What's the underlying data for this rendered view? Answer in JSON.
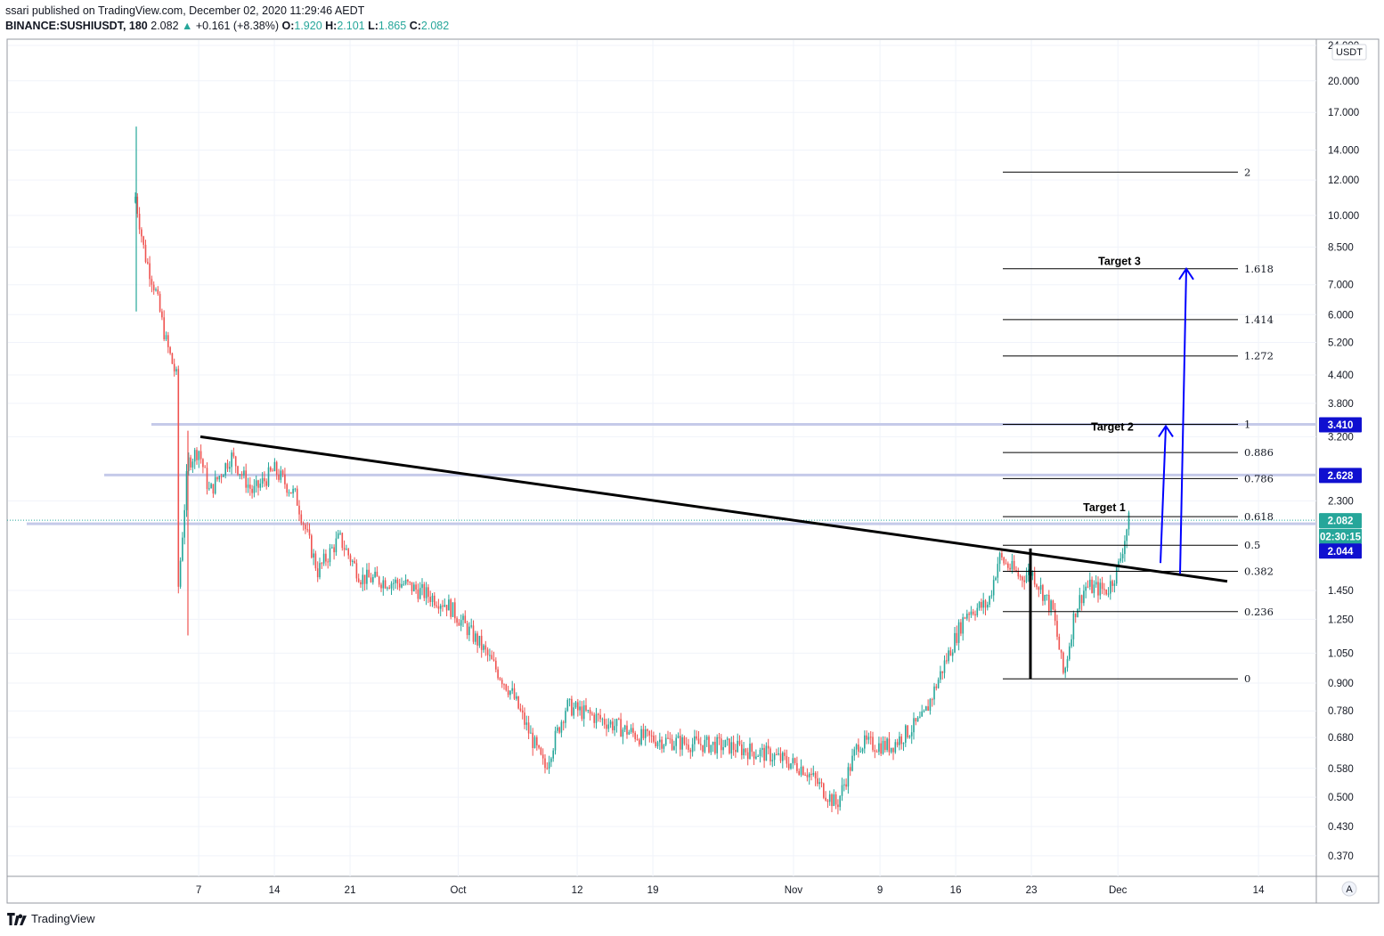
{
  "header": {
    "publisher_line": "ssari published on TradingView.com, December 02, 2020 11:29:46 AEDT",
    "symbol": "BINANCE:SUSHIUSDT, 180",
    "last": "2.082",
    "arrow": "▲",
    "change": "+0.161 (+8.38%)",
    "o_label": "O:",
    "o_value": "1.920",
    "h_label": "H:",
    "h_value": "2.101",
    "l_label": "L:",
    "l_value": "1.865",
    "c_label": "C:",
    "c_value": "2.082"
  },
  "brand": "TradingView",
  "chart_data": {
    "type": "candlestick",
    "symbol": "BINANCE:SUSHIUSDT",
    "interval": "180",
    "y_scale": "log",
    "currency_label": "USDT",
    "x_ticks": [
      "7",
      "14",
      "21",
      "Oct",
      "12",
      "19",
      "Nov",
      "9",
      "16",
      "23",
      "Dec",
      "14"
    ],
    "y_ticks": [
      "24.000",
      "20.000",
      "17.000",
      "14.000",
      "12.000",
      "10.000",
      "8.500",
      "7.000",
      "6.000",
      "5.200",
      "4.400",
      "3.800",
      "3.200",
      "2.300",
      "1.450",
      "1.250",
      "1.050",
      "0.900",
      "0.780",
      "0.680",
      "0.580",
      "0.500",
      "0.430",
      "0.370"
    ],
    "price_path": [
      {
        "date": "2020-09-01",
        "price": 6.1
      },
      {
        "date": "2020-09-01",
        "price": 15.8
      },
      {
        "date": "2020-09-01",
        "price": 11.6
      },
      {
        "date": "2020-09-02",
        "price": 8.2
      },
      {
        "date": "2020-09-03",
        "price": 6.8
      },
      {
        "date": "2020-09-04",
        "price": 5.2
      },
      {
        "date": "2020-09-05",
        "price": 4.3
      },
      {
        "date": "2020-09-05",
        "price": 1.35
      },
      {
        "date": "2020-09-06",
        "price": 2.8
      },
      {
        "date": "2020-09-07",
        "price": 3.0
      },
      {
        "date": "2020-09-08",
        "price": 2.4
      },
      {
        "date": "2020-09-10",
        "price": 2.9
      },
      {
        "date": "2020-09-12",
        "price": 2.4
      },
      {
        "date": "2020-09-14",
        "price": 2.7
      },
      {
        "date": "2020-09-16",
        "price": 2.35
      },
      {
        "date": "2020-09-18",
        "price": 1.6
      },
      {
        "date": "2020-09-20",
        "price": 1.9
      },
      {
        "date": "2020-09-22",
        "price": 1.55
      },
      {
        "date": "2020-09-26",
        "price": 1.5
      },
      {
        "date": "2020-09-30",
        "price": 1.35
      },
      {
        "date": "2020-10-03",
        "price": 1.1
      },
      {
        "date": "2020-10-06",
        "price": 0.85
      },
      {
        "date": "2020-10-09",
        "price": 0.58
      },
      {
        "date": "2020-10-11",
        "price": 0.8
      },
      {
        "date": "2020-10-14",
        "price": 0.75
      },
      {
        "date": "2020-10-18",
        "price": 0.68
      },
      {
        "date": "2020-10-22",
        "price": 0.66
      },
      {
        "date": "2020-10-26",
        "price": 0.65
      },
      {
        "date": "2020-10-30",
        "price": 0.62
      },
      {
        "date": "2020-11-02",
        "price": 0.58
      },
      {
        "date": "2020-11-05",
        "price": 0.48
      },
      {
        "date": "2020-11-07",
        "price": 0.66
      },
      {
        "date": "2020-11-10",
        "price": 0.65
      },
      {
        "date": "2020-11-13",
        "price": 0.75
      },
      {
        "date": "2020-11-15",
        "price": 1.0
      },
      {
        "date": "2020-11-17",
        "price": 1.3
      },
      {
        "date": "2020-11-19",
        "price": 1.35
      },
      {
        "date": "2020-11-20",
        "price": 1.72
      },
      {
        "date": "2020-11-22",
        "price": 1.55
      },
      {
        "date": "2020-11-23",
        "price": 1.6
      },
      {
        "date": "2020-11-25",
        "price": 1.3
      },
      {
        "date": "2020-11-26",
        "price": 0.93
      },
      {
        "date": "2020-11-27",
        "price": 1.3
      },
      {
        "date": "2020-11-28",
        "price": 1.48
      },
      {
        "date": "2020-11-30",
        "price": 1.45
      },
      {
        "date": "2020-12-01",
        "price": 1.62
      },
      {
        "date": "2020-12-02",
        "price": 2.08
      }
    ],
    "horizontal_lines": [
      {
        "price": 3.41,
        "color": "#c5cae9"
      },
      {
        "price": 2.628,
        "color": "#c5cae9"
      },
      {
        "price": 2.044,
        "color": "#c5cae9"
      }
    ],
    "trendline": [
      {
        "date": "2020-09-07",
        "price": 3.2
      },
      {
        "date": "2020-12-12",
        "price": 1.52
      }
    ],
    "fibonacci": {
      "start_date": "2020-11-21",
      "end_date": "2020-12-10",
      "levels": [
        {
          "label": "2",
          "price": 12.5
        },
        {
          "label": "1.618",
          "price": 7.6
        },
        {
          "label": "1.414",
          "price": 5.85
        },
        {
          "label": "1.272",
          "price": 4.85
        },
        {
          "label": "1",
          "price": 3.41
        },
        {
          "label": "0.886",
          "price": 2.95
        },
        {
          "label": "0.786",
          "price": 2.58
        },
        {
          "label": "0.618",
          "price": 2.12
        },
        {
          "label": "0.5",
          "price": 1.83
        },
        {
          "label": "0.382",
          "price": 1.6
        },
        {
          "label": "0.236",
          "price": 1.3
        },
        {
          "label": "0",
          "price": 0.92
        }
      ]
    },
    "annotations": [
      {
        "text": "Target 1",
        "date": "2020-11-30",
        "price": 2.18
      },
      {
        "text": "Target 2",
        "date": "2020-11-30",
        "price": 3.3
      },
      {
        "text": "Target 3",
        "date": "2020-11-30",
        "price": 7.75
      }
    ],
    "arrows": [
      {
        "from_date": "2020-12-06",
        "from_price": 1.67,
        "to_date": "2020-12-07",
        "to_price": 3.41,
        "color": "#0000ff"
      },
      {
        "from_date": "2020-12-07",
        "from_price": 1.58,
        "to_date": "2020-12-08",
        "to_price": 7.7,
        "color": "#0000ff"
      }
    ],
    "vertical_markers": [
      {
        "date": "2020-11-23",
        "top_price": 1.8,
        "bottom_price": 0.92
      }
    ],
    "price_labels": [
      {
        "text": "3.410",
        "price": 3.41,
        "color": "#1010d0"
      },
      {
        "text": "2.628",
        "price": 2.628,
        "color": "#1010d0"
      },
      {
        "text": "2.082",
        "price": 2.082,
        "color": "#26a69a"
      },
      {
        "text": "02:30:15",
        "price": 1.92,
        "color": "#26a69a"
      },
      {
        "text": "2.044",
        "price": 1.78,
        "color": "#1010d0"
      }
    ],
    "auto_scale_label": "A",
    "colors": {
      "up": "#26a69a",
      "down": "#ef5350",
      "line": "#000000",
      "arrow": "#0000ff",
      "hline": "#c5cae9"
    }
  }
}
